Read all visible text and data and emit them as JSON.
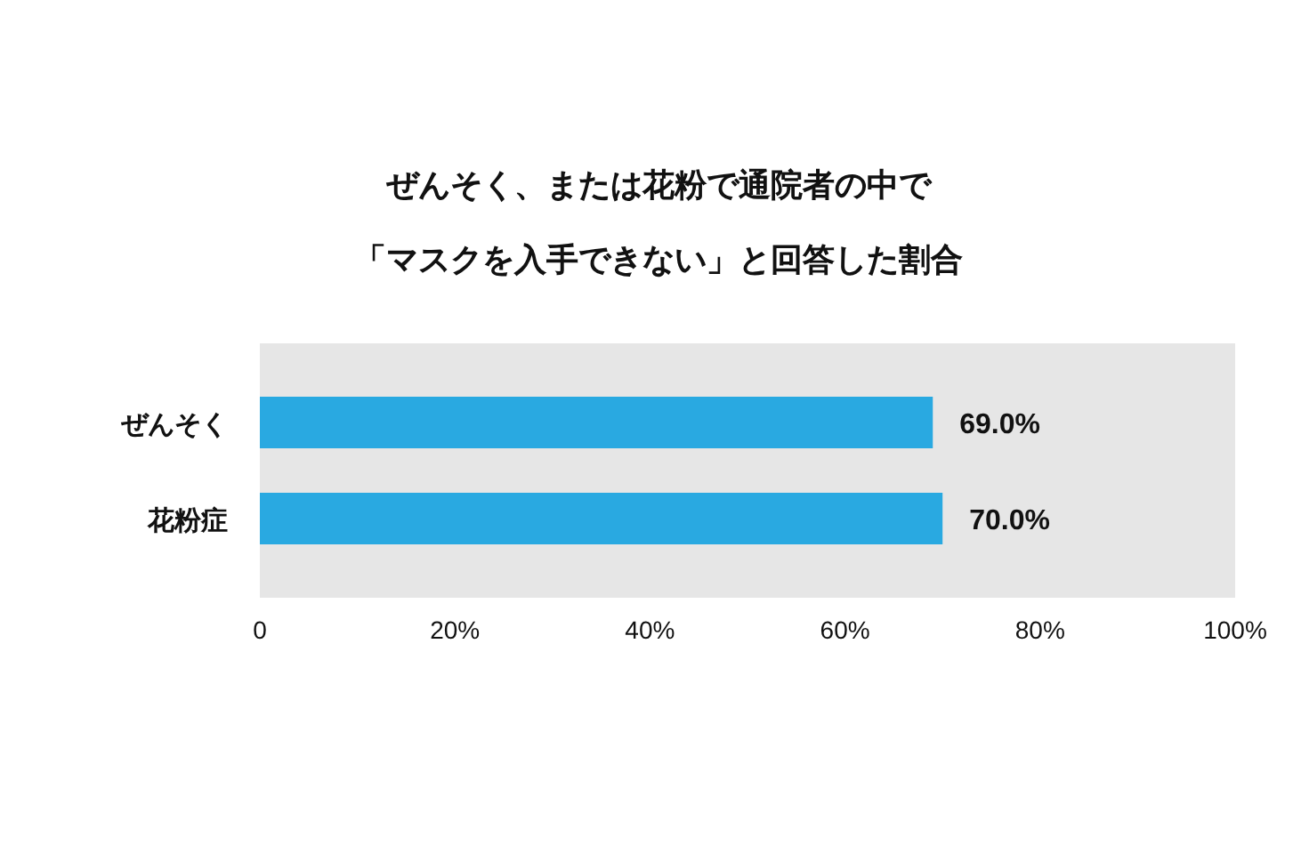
{
  "chart_data": {
    "type": "bar",
    "orientation": "horizontal",
    "title": "ぜんそく、または花粉で通院者の中で「マスクを入手できない」と回答した割合",
    "categories": [
      "ぜんそく",
      "花粉症"
    ],
    "values": [
      69.0,
      70.0
    ],
    "color": "#29a9e1",
    "value_labels": [
      "69.0%",
      "70.0%"
    ],
    "xlim": [
      0,
      100
    ],
    "xticks": [
      0,
      {
        "value": 20,
        "label": "20%"
      },
      {
        "value": 40,
        "label": "40%"
      },
      {
        "value": 60,
        "label": "60%"
      },
      {
        "value": 80,
        "label": "80%"
      },
      {
        "value": 100,
        "label": "100%"
      }
    ],
    "grid": false
  }
}
